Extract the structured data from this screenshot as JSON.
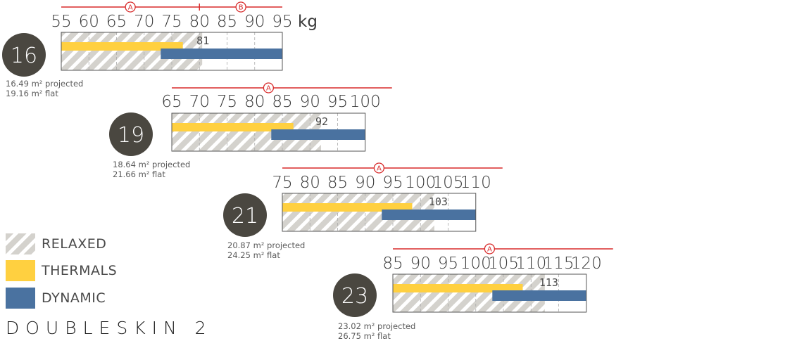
{
  "chart_data": {
    "type": "bar",
    "unit": "kg",
    "series_names": [
      "RELAXED",
      "THERMALS",
      "DYNAMIC"
    ],
    "colors": {
      "relaxed_a": "#d4d2cd",
      "relaxed_b": "#ffffff",
      "thermals": "#ffd040",
      "dynamic": "#4a72a0",
      "axis_red": "#d82a2a",
      "badge": "#4a4740",
      "frame": "#555555"
    },
    "wings": [
      {
        "size": "16",
        "projected": "16.49 m² projected",
        "flat": "19.16 m² flat",
        "range": [
          55,
          95
        ],
        "ticks": [
          "55",
          "60",
          "65",
          "70",
          "75",
          "80",
          "85",
          "90",
          "95"
        ],
        "relaxed": [
          55,
          80.5
        ],
        "thermals": [
          55,
          77
        ],
        "dynamic": [
          73,
          95
        ],
        "max_label": "81",
        "markers": [
          {
            "label": "A",
            "value": 67.5
          },
          {
            "label": "B",
            "value": 87.5
          }
        ],
        "certification_split": 80
      },
      {
        "size": "19",
        "projected": "18.64 m² projected",
        "flat": "21.66 m² flat",
        "range": [
          65,
          100
        ],
        "ticks": [
          "65",
          "70",
          "75",
          "80",
          "85",
          "90",
          "95",
          "100"
        ],
        "relaxed": [
          65,
          92
        ],
        "thermals": [
          65,
          87
        ],
        "dynamic": [
          83,
          100
        ],
        "max_label": "92",
        "markers": [
          {
            "label": "A",
            "value": 82.5
          }
        ]
      },
      {
        "size": "21",
        "projected": "20.87 m² projected",
        "flat": "24.25 m² flat",
        "range": [
          75,
          110
        ],
        "ticks": [
          "75",
          "80",
          "85",
          "90",
          "95",
          "100",
          "105",
          "110"
        ],
        "relaxed": [
          75,
          102.5
        ],
        "thermals": [
          75,
          98.5
        ],
        "dynamic": [
          93,
          110
        ],
        "max_label": "103",
        "markers": [
          {
            "label": "A",
            "value": 92.5
          }
        ]
      },
      {
        "size": "23",
        "projected": "23.02 m² projected",
        "flat": "26.75 m² flat",
        "range": [
          85,
          120
        ],
        "ticks": [
          "85",
          "90",
          "95",
          "100",
          "105",
          "110",
          "115",
          "120"
        ],
        "relaxed": [
          85,
          112.5
        ],
        "thermals": [
          85,
          108.5
        ],
        "dynamic": [
          103,
          120
        ],
        "max_label": "113",
        "markers": [
          {
            "label": "A",
            "value": 102.5
          }
        ]
      }
    ]
  },
  "legend": [
    {
      "key": "relaxed",
      "label": "RELAXED"
    },
    {
      "key": "thermals",
      "label": "THERMALS"
    },
    {
      "key": "dynamic",
      "label": "DYNAMIC"
    }
  ],
  "brand": "DOUBLESKIN 2"
}
